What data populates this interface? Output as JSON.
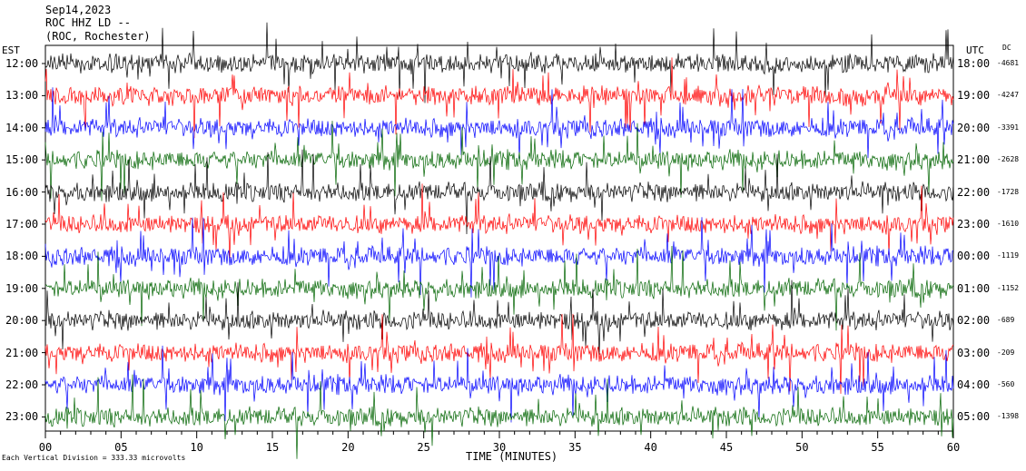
{
  "header": {
    "date": "Sep14,2023",
    "station": "ROC HHZ LD --",
    "location": "(ROC, Rochester)"
  },
  "axes": {
    "left_label": "EST",
    "right_label": "UTC",
    "dc_label": "DC",
    "x_title": "TIME (MINUTES)",
    "footnote": "Each Vertical Division = 333.33 microvolts"
  },
  "colors": {
    "cycle": [
      "#000000",
      "#ff0000",
      "#0000ff",
      "#006400"
    ]
  },
  "chart_data": {
    "type": "line",
    "title": "Sep14,2023",
    "xlabel": "TIME (MINUTES)",
    "xlim": [
      0,
      60
    ],
    "x_ticks": [
      "00",
      "05",
      "10",
      "15",
      "20",
      "25",
      "30",
      "35",
      "40",
      "45",
      "50",
      "55",
      "60"
    ],
    "rows": [
      {
        "est": "12:00",
        "utc": "18:00",
        "dc": "-4681",
        "color": "#000000"
      },
      {
        "est": "13:00",
        "utc": "19:00",
        "dc": "-4247",
        "color": "#ff0000"
      },
      {
        "est": "14:00",
        "utc": "20:00",
        "dc": "-3391",
        "color": "#0000ff"
      },
      {
        "est": "15:00",
        "utc": "21:00",
        "dc": "-2628",
        "color": "#006400"
      },
      {
        "est": "16:00",
        "utc": "22:00",
        "dc": "-1728",
        "color": "#000000"
      },
      {
        "est": "17:00",
        "utc": "23:00",
        "dc": "-1610",
        "color": "#ff0000"
      },
      {
        "est": "18:00",
        "utc": "00:00",
        "dc": "-1119",
        "color": "#0000ff"
      },
      {
        "est": "19:00",
        "utc": "01:00",
        "dc": "-1152",
        "color": "#006400"
      },
      {
        "est": "20:00",
        "utc": "02:00",
        "dc": "-689",
        "color": "#000000"
      },
      {
        "est": "21:00",
        "utc": "03:00",
        "dc": "-209",
        "color": "#ff0000"
      },
      {
        "est": "22:00",
        "utc": "04:00",
        "dc": "-560",
        "color": "#0000ff"
      },
      {
        "est": "23:00",
        "utc": "05:00",
        "dc": "-1398",
        "color": "#006400"
      }
    ]
  }
}
